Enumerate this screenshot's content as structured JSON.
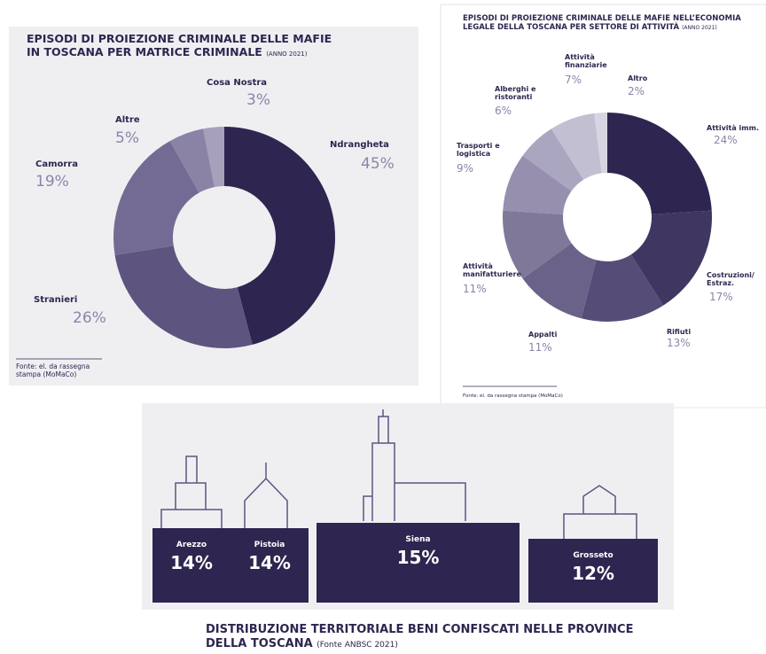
{
  "chart_data": [
    {
      "type": "donut",
      "title": "EPISODI DI PROIEZIONE CRIMINALE DELLE MAFIE IN TOSCANA PER MATRICE CRIMINALE",
      "subtitle": "(ANNO 2021)",
      "categories": [
        "Ndrangheta",
        "Stranieri",
        "Camorra",
        "Altre",
        "Cosa Nostra"
      ],
      "values": [
        45,
        26,
        19,
        5,
        3
      ],
      "value_labels": [
        "45%",
        "26%",
        "19%",
        "5%",
        "3%"
      ],
      "colors": [
        "#2e2650",
        "#5e5480",
        "#746b94",
        "#8a83a6",
        "#a6a0bb"
      ],
      "source": "Fonte: el. da rassegna stampa (MoMaCo)"
    },
    {
      "type": "donut",
      "title": "EPISODI DI PROIEZIONE CRIMINALE DELLE MAFIE NELL’ECONOMIA LEGALE DELLA TOSCANA PER SETTORE DI ATTIVITÀ",
      "subtitle": "(ANNO 2021)",
      "categories": [
        "Attività imm.",
        "Costruzioni/ Estraz.",
        "Rifiuti",
        "Appalti",
        "Attività manifatturiere",
        "Trasporti e logistica",
        "Alberghi e ristoranti",
        "Attività finanziarie",
        "Altro"
      ],
      "values": [
        24,
        17,
        13,
        11,
        11,
        9,
        6,
        7,
        2
      ],
      "value_labels": [
        "24%",
        "17%",
        "13%",
        "11%",
        "11%",
        "9%",
        "6%",
        "7%",
        "2%"
      ],
      "colors": [
        "#2e2650",
        "#3f3762",
        "#554c78",
        "#6a6289",
        "#7f7899",
        "#968fae",
        "#aba6c0",
        "#c3bfd2",
        "#d8d5e2"
      ],
      "source": "Fonte: el. da rassegna stampa (MoMaCo)"
    },
    {
      "type": "panel",
      "title": "DISTRIBUZIONE TERRITORIALE BENI CONFISCATI NELLE PROVINCE DELLA TOSCANA",
      "subtitle": "(Fonte ANBSC 2021)",
      "categories": [
        "Arezzo",
        "Pistoia",
        "Siena",
        "Grosseto"
      ],
      "values": [
        14,
        14,
        15,
        12
      ],
      "value_labels": [
        "14%",
        "14%",
        "15%",
        "12%"
      ],
      "color": "#2e2650"
    }
  ]
}
